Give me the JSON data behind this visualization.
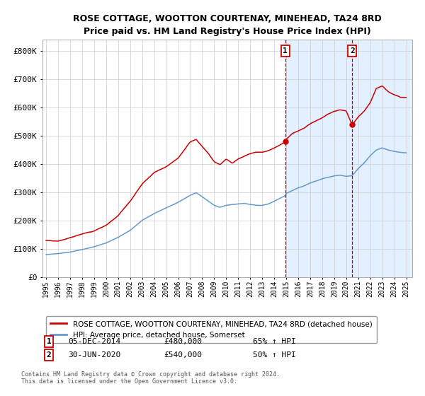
{
  "title": "ROSE COTTAGE, WOOTTON COURTENAY, MINEHEAD, TA24 8RD",
  "subtitle": "Price paid vs. HM Land Registry's House Price Index (HPI)",
  "legend_line1": "ROSE COTTAGE, WOOTTON COURTENAY, MINEHEAD, TA24 8RD (detached house)",
  "legend_line2": "HPI: Average price, detached house, Somerset",
  "ann1_label": "1",
  "ann1_date": "05-DEC-2014",
  "ann1_price": "£480,000",
  "ann1_hpi": "65% ↑ HPI",
  "ann1_x": 2014.92,
  "ann1_y": 480000,
  "ann2_label": "2",
  "ann2_date": "30-JUN-2020",
  "ann2_price": "£540,000",
  "ann2_hpi": "50% ↑ HPI",
  "ann2_x": 2020.5,
  "ann2_y": 540000,
  "footer1": "Contains HM Land Registry data © Crown copyright and database right 2024.",
  "footer2": "This data is licensed under the Open Government Licence v3.0.",
  "red_color": "#cc0000",
  "blue_color": "#6699cc",
  "shade_color": "#ddeeff",
  "ylim": [
    0,
    840000
  ],
  "xlim_start": 1994.7,
  "xlim_end": 2025.5,
  "red_keypoints": [
    [
      1995.0,
      130000
    ],
    [
      1996.0,
      128000
    ],
    [
      1997.0,
      140000
    ],
    [
      1998.0,
      155000
    ],
    [
      1999.0,
      165000
    ],
    [
      2000.0,
      185000
    ],
    [
      2001.0,
      220000
    ],
    [
      2002.0,
      270000
    ],
    [
      2003.0,
      330000
    ],
    [
      2004.0,
      370000
    ],
    [
      2005.0,
      390000
    ],
    [
      2006.0,
      420000
    ],
    [
      2007.0,
      480000
    ],
    [
      2007.5,
      490000
    ],
    [
      2008.0,
      465000
    ],
    [
      2008.5,
      440000
    ],
    [
      2009.0,
      410000
    ],
    [
      2009.5,
      400000
    ],
    [
      2010.0,
      420000
    ],
    [
      2010.5,
      405000
    ],
    [
      2011.0,
      420000
    ],
    [
      2011.5,
      430000
    ],
    [
      2012.0,
      440000
    ],
    [
      2012.5,
      445000
    ],
    [
      2013.0,
      445000
    ],
    [
      2013.5,
      450000
    ],
    [
      2014.0,
      460000
    ],
    [
      2014.92,
      480000
    ],
    [
      2015.0,
      490000
    ],
    [
      2015.5,
      510000
    ],
    [
      2016.0,
      520000
    ],
    [
      2016.5,
      530000
    ],
    [
      2017.0,
      545000
    ],
    [
      2017.5,
      555000
    ],
    [
      2018.0,
      565000
    ],
    [
      2018.5,
      580000
    ],
    [
      2019.0,
      590000
    ],
    [
      2019.5,
      595000
    ],
    [
      2020.0,
      590000
    ],
    [
      2020.5,
      540000
    ],
    [
      2021.0,
      570000
    ],
    [
      2021.5,
      590000
    ],
    [
      2022.0,
      620000
    ],
    [
      2022.5,
      670000
    ],
    [
      2023.0,
      680000
    ],
    [
      2023.5,
      660000
    ],
    [
      2024.0,
      650000
    ],
    [
      2024.5,
      640000
    ],
    [
      2025.0,
      640000
    ]
  ],
  "blue_keypoints": [
    [
      1995.0,
      80000
    ],
    [
      1996.0,
      83000
    ],
    [
      1997.0,
      88000
    ],
    [
      1998.0,
      97000
    ],
    [
      1999.0,
      107000
    ],
    [
      2000.0,
      120000
    ],
    [
      2001.0,
      140000
    ],
    [
      2002.0,
      165000
    ],
    [
      2003.0,
      200000
    ],
    [
      2004.0,
      225000
    ],
    [
      2005.0,
      245000
    ],
    [
      2006.0,
      265000
    ],
    [
      2007.0,
      290000
    ],
    [
      2007.5,
      300000
    ],
    [
      2008.0,
      285000
    ],
    [
      2008.5,
      270000
    ],
    [
      2009.0,
      255000
    ],
    [
      2009.5,
      248000
    ],
    [
      2010.0,
      255000
    ],
    [
      2010.5,
      258000
    ],
    [
      2011.0,
      260000
    ],
    [
      2011.5,
      262000
    ],
    [
      2012.0,
      258000
    ],
    [
      2012.5,
      255000
    ],
    [
      2013.0,
      255000
    ],
    [
      2013.5,
      260000
    ],
    [
      2014.0,
      270000
    ],
    [
      2014.92,
      290000
    ],
    [
      2015.0,
      298000
    ],
    [
      2015.5,
      308000
    ],
    [
      2016.0,
      318000
    ],
    [
      2016.5,
      325000
    ],
    [
      2017.0,
      335000
    ],
    [
      2017.5,
      342000
    ],
    [
      2018.0,
      350000
    ],
    [
      2018.5,
      355000
    ],
    [
      2019.0,
      360000
    ],
    [
      2019.5,
      362000
    ],
    [
      2020.0,
      358000
    ],
    [
      2020.5,
      360000
    ],
    [
      2021.0,
      385000
    ],
    [
      2021.5,
      405000
    ],
    [
      2022.0,
      430000
    ],
    [
      2022.5,
      450000
    ],
    [
      2023.0,
      458000
    ],
    [
      2023.5,
      450000
    ],
    [
      2024.0,
      445000
    ],
    [
      2024.5,
      442000
    ],
    [
      2025.0,
      440000
    ]
  ]
}
